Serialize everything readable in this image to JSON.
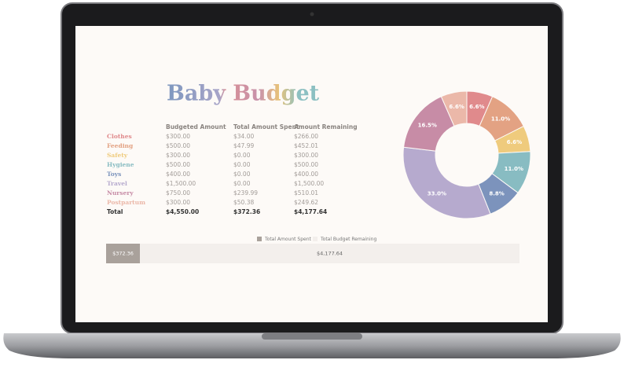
{
  "title": "Baby Budget",
  "table": {
    "header": [
      "Budgeted Amount",
      "Total Amount Spent",
      "Amount Remaining"
    ],
    "rows": [
      [
        "Clothes",
        "$300.00",
        "$34.00",
        "$266.00"
      ],
      [
        "Feeding",
        "$500.00",
        "$47.99",
        "$452.01"
      ],
      [
        "Safety",
        "$300.00",
        "$0.00",
        "$300.00"
      ],
      [
        "Hygiene",
        "$500.00",
        "$0.00",
        "$500.00"
      ],
      [
        "Toys",
        "$400.00",
        "$0.00",
        "$400.00"
      ],
      [
        "Travel",
        "$1,500.00",
        "$0.00",
        "$1,500.00"
      ],
      [
        "Nursery",
        "$750.00",
        "$239.99",
        "$510.01"
      ],
      [
        "Postpartum",
        "$300.00",
        "$50.38",
        "$249.62"
      ],
      [
        "Total",
        "$4,550.00",
        "$372.36",
        "$4,177.64"
      ]
    ]
  },
  "pie": {
    "type": "donut",
    "values": [
      6.6,
      11.0,
      6.6,
      11.0,
      8.8,
      33.0,
      16.5,
      6.6
    ],
    "value_labels": [
      "6.6%",
      "11.0%",
      "6.6%",
      "11.0%",
      "8.8%",
      "33.0%",
      "16.5%",
      "6.6%"
    ],
    "colors": [
      "#e08a8c",
      "#e3a283",
      "#efcb7d",
      "#88bcc2",
      "#7c93bc",
      "#b6aace",
      "#c78ca6",
      "#ebb8a9"
    ]
  },
  "progress": {
    "legend": [
      "Total Amount Spent",
      "Total Budget Remaining"
    ],
    "values": [
      372.36,
      4177.64
    ],
    "value_labels": [
      "$372.36",
      "$4,177.64"
    ],
    "colors": [
      "#a9a19b",
      "#f3efec"
    ]
  }
}
